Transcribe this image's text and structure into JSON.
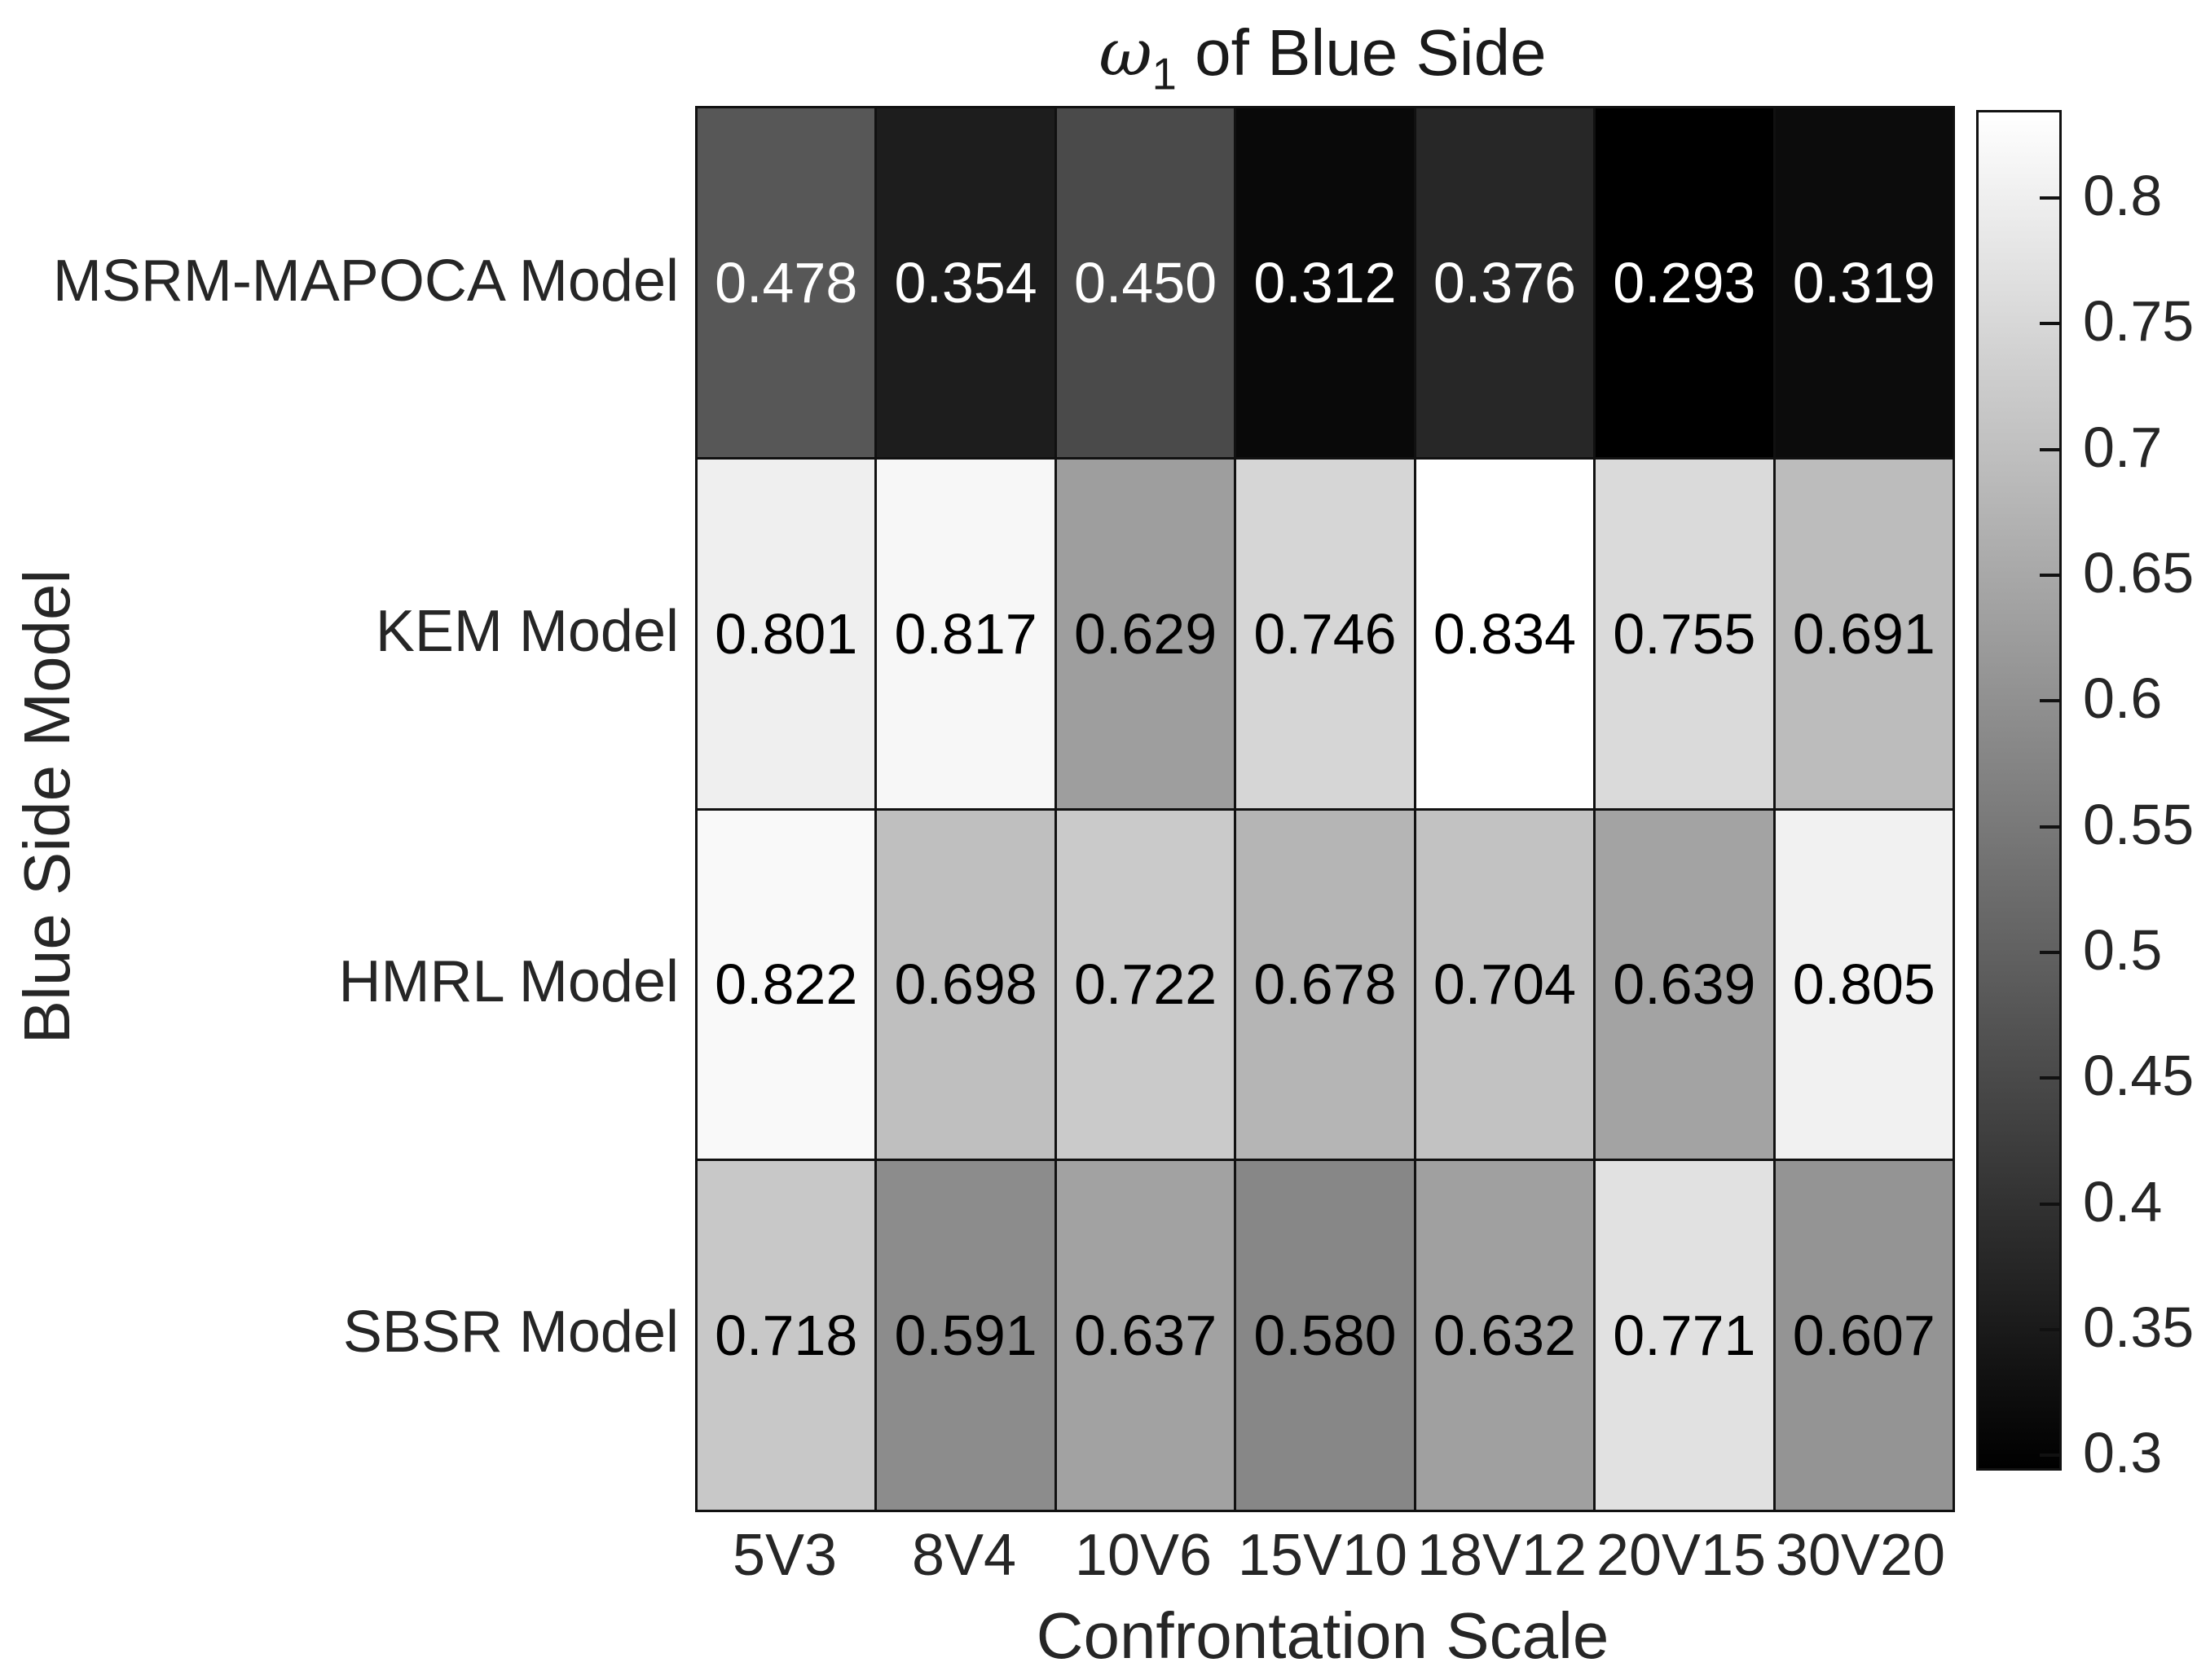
{
  "title": {
    "omega": "ω",
    "subscript": "1",
    "rest": " of Blue Side"
  },
  "chart_data": {
    "type": "heatmap",
    "title": "ω_1 of Blue Side",
    "xlabel": "Confrontation Scale",
    "ylabel": "Blue Side Model",
    "columns": [
      "5V3",
      "8V4",
      "10V6",
      "15V10",
      "18V12",
      "20V15",
      "30V20"
    ],
    "rows": [
      "MSRM-MAPOCA Model",
      "KEM Model",
      "HMRL Model",
      "SBSR Model"
    ],
    "values": [
      [
        0.478,
        0.354,
        0.45,
        0.312,
        0.376,
        0.293,
        0.319
      ],
      [
        0.801,
        0.817,
        0.629,
        0.746,
        0.834,
        0.755,
        0.691
      ],
      [
        0.822,
        0.698,
        0.722,
        0.678,
        0.704,
        0.639,
        0.805
      ],
      [
        0.718,
        0.591,
        0.637,
        0.58,
        0.632,
        0.771,
        0.607
      ]
    ],
    "value_decimals": 3,
    "colormap": "gray",
    "color_range": [
      0.293,
      0.834
    ],
    "colorbar_ticks": [
      0.8,
      0.75,
      0.7,
      0.65,
      0.6,
      0.55,
      0.5,
      0.45,
      0.4,
      0.35,
      0.3
    ],
    "legend_position": "right-colorbar",
    "grid": "on"
  },
  "colors": {
    "background": "#ffffff",
    "grid_line": "#111111",
    "label_text": "#262626",
    "cell_text_dark": "#000000",
    "cell_text_light": "#ffffff"
  }
}
